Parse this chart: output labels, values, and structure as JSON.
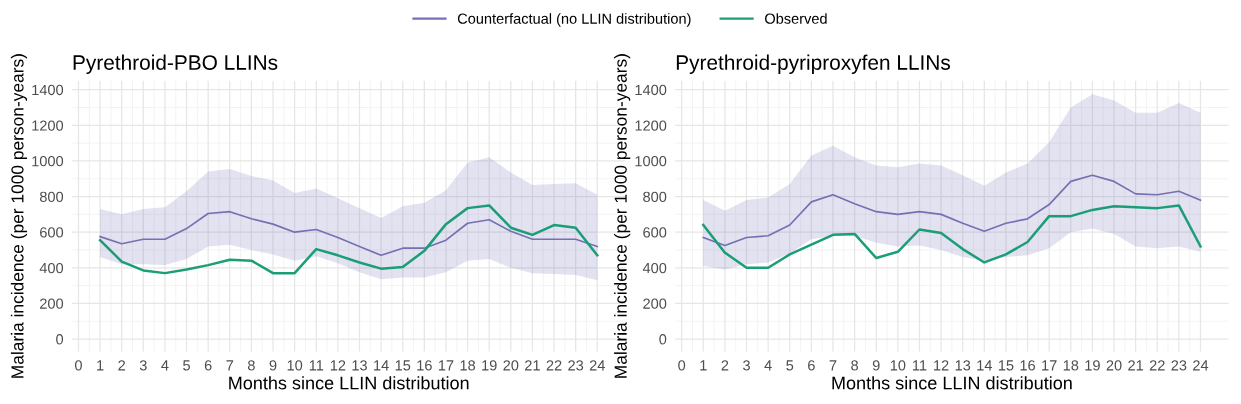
{
  "chart_data": [
    {
      "type": "line",
      "title": "Pyrethroid-PBO LLINs",
      "xlabel": "Months since LLIN distribution",
      "ylabel": "Malaria incidence (per 1000 person-years)",
      "x": [
        1,
        2,
        3,
        4,
        5,
        6,
        7,
        8,
        9,
        10,
        11,
        12,
        13,
        14,
        15,
        16,
        17,
        18,
        19,
        20,
        21,
        22,
        23,
        24
      ],
      "xlim": [
        -0.3,
        25.3
      ],
      "xticks": [
        0,
        1,
        2,
        3,
        4,
        5,
        6,
        7,
        8,
        9,
        10,
        11,
        12,
        13,
        14,
        15,
        16,
        17,
        18,
        19,
        20,
        21,
        22,
        23,
        24
      ],
      "ylim": [
        -70,
        1450
      ],
      "yticks": [
        0,
        200,
        400,
        600,
        800,
        1000,
        1200,
        1400
      ],
      "grid": true,
      "legend": "top",
      "series": [
        {
          "name": "Counterfactual (no LLIN distribution)",
          "color": "#7570b3",
          "values": [
            575,
            535,
            560,
            560,
            620,
            705,
            715,
            675,
            645,
            600,
            615,
            570,
            520,
            470,
            510,
            510,
            555,
            650,
            670,
            605,
            560,
            560,
            560,
            520
          ],
          "lower": [
            460,
            420,
            420,
            415,
            450,
            520,
            530,
            500,
            475,
            440,
            465,
            425,
            375,
            335,
            345,
            345,
            375,
            440,
            450,
            400,
            370,
            365,
            360,
            330
          ],
          "upper": [
            730,
            700,
            730,
            740,
            830,
            940,
            955,
            915,
            890,
            820,
            845,
            790,
            735,
            680,
            745,
            765,
            835,
            990,
            1020,
            935,
            865,
            870,
            875,
            810
          ]
        },
        {
          "name": "Observed",
          "color": "#1b9e77",
          "values": [
            555,
            435,
            385,
            370,
            390,
            415,
            445,
            440,
            370,
            370,
            505,
            470,
            430,
            395,
            405,
            495,
            645,
            735,
            750,
            625,
            585,
            640,
            625,
            470
          ]
        }
      ]
    },
    {
      "type": "line",
      "title": "Pyrethroid-pyriproxyfen LLINs",
      "xlabel": "Months since LLIN distribution",
      "ylabel": "Malaria incidence (per 1000 person-years)",
      "x": [
        1,
        2,
        3,
        4,
        5,
        6,
        7,
        8,
        9,
        10,
        11,
        12,
        13,
        14,
        15,
        16,
        17,
        18,
        19,
        20,
        21,
        22,
        23,
        24
      ],
      "xlim": [
        -0.3,
        25.3
      ],
      "xticks": [
        0,
        1,
        2,
        3,
        4,
        5,
        6,
        7,
        8,
        9,
        10,
        11,
        12,
        13,
        14,
        15,
        16,
        17,
        18,
        19,
        20,
        21,
        22,
        23,
        24
      ],
      "ylim": [
        -70,
        1450
      ],
      "yticks": [
        0,
        200,
        400,
        600,
        800,
        1000,
        1200,
        1400
      ],
      "grid": true,
      "legend": "top",
      "series": [
        {
          "name": "Counterfactual (no LLIN distribution)",
          "color": "#7570b3",
          "values": [
            570,
            525,
            570,
            580,
            640,
            770,
            810,
            760,
            715,
            700,
            715,
            700,
            650,
            605,
            650,
            675,
            755,
            885,
            920,
            885,
            815,
            810,
            830,
            780
          ],
          "lower": [
            410,
            390,
            420,
            430,
            480,
            560,
            580,
            580,
            540,
            520,
            525,
            500,
            460,
            440,
            460,
            470,
            510,
            600,
            620,
            590,
            520,
            510,
            520,
            490
          ],
          "upper": [
            780,
            720,
            780,
            795,
            870,
            1030,
            1085,
            1020,
            975,
            965,
            985,
            975,
            920,
            860,
            935,
            985,
            1105,
            1300,
            1375,
            1340,
            1270,
            1270,
            1325,
            1270
          ]
        },
        {
          "name": "Observed",
          "color": "#1b9e77",
          "values": [
            640,
            485,
            400,
            400,
            475,
            530,
            585,
            590,
            455,
            490,
            615,
            595,
            505,
            430,
            475,
            545,
            690,
            690,
            725,
            745,
            740,
            735,
            750,
            520
          ]
        }
      ]
    }
  ]
}
